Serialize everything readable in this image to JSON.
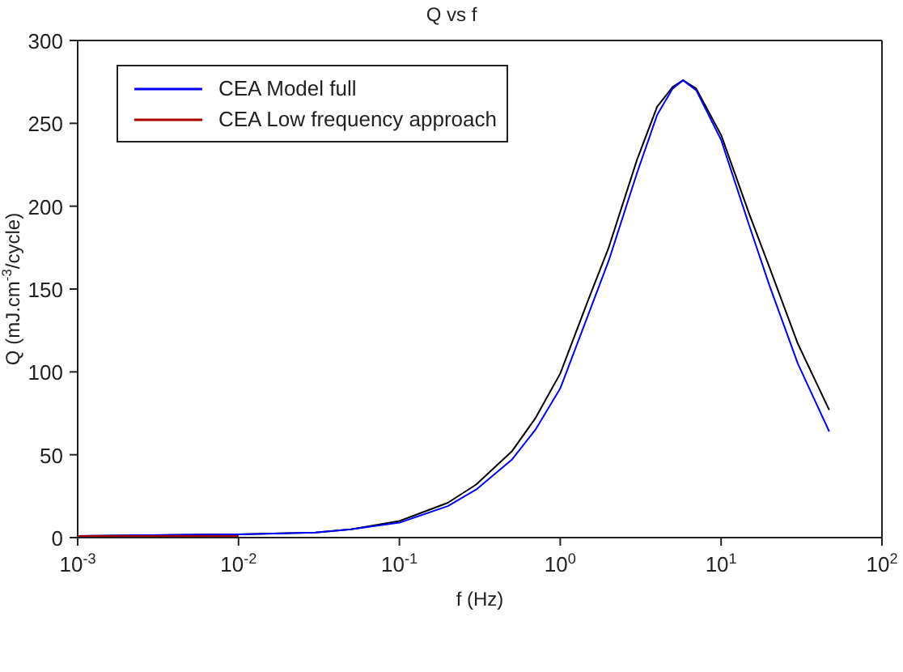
{
  "chart_data": {
    "type": "line",
    "title": "Q vs f",
    "xlabel": "f (Hz)",
    "ylabel": "Q (mJ.cm$^{-3}$/cycle)",
    "log": "x",
    "legend": "top left",
    "marker": "none",
    "line_style": "solid",
    "xlim": [
      0.001,
      100
    ],
    "xticks": [
      {
        "value": 0.001,
        "label": "10$^{-3}$"
      },
      {
        "value": 0.01,
        "label": "10$^{-2}$"
      },
      {
        "value": 0.1,
        "label": "10$^{-1}$"
      },
      {
        "value": 1,
        "label": "10$^{0}$"
      },
      {
        "value": 10,
        "label": "10$^{1}$"
      },
      {
        "value": 100,
        "label": "10$^{2}$"
      }
    ],
    "ylim": [
      0,
      300
    ],
    "yticks": [
      0,
      50,
      100,
      150,
      200,
      250,
      300
    ],
    "series": [
      {
        "color": "#000000",
        "x": [
          0.001,
          0.01,
          0.03,
          0.05,
          0.1,
          0.2,
          0.3,
          0.5,
          0.7,
          1,
          1.5,
          2,
          3,
          4,
          5,
          5.8,
          7,
          10,
          15,
          20,
          30,
          47
        ],
        "values": [
          1,
          2,
          3,
          5,
          10,
          21,
          32,
          52,
          72,
          99,
          144,
          175,
          228,
          260,
          272,
          276,
          271,
          243,
          195,
          163,
          117,
          77
        ]
      },
      {
        "name": "CEA Model full",
        "color": "#0000ff",
        "x": [
          0.001,
          0.01,
          0.03,
          0.05,
          0.1,
          0.2,
          0.3,
          0.5,
          0.7,
          1,
          1.5,
          2,
          3,
          4,
          5,
          5.8,
          7,
          10,
          15,
          20,
          30,
          47
        ],
        "values": [
          1,
          2,
          3,
          5,
          9,
          19,
          29,
          47,
          65,
          90,
          135,
          167,
          220,
          255,
          271,
          276,
          270,
          240,
          188,
          152,
          105,
          64
        ]
      },
      {
        "name": "CEA Low frequency approach",
        "color": "#aa0000",
        "x": [
          0.001,
          0.002,
          0.004,
          0.006,
          0.01
        ],
        "values": [
          1,
          1,
          1,
          1,
          1
        ]
      }
    ]
  }
}
